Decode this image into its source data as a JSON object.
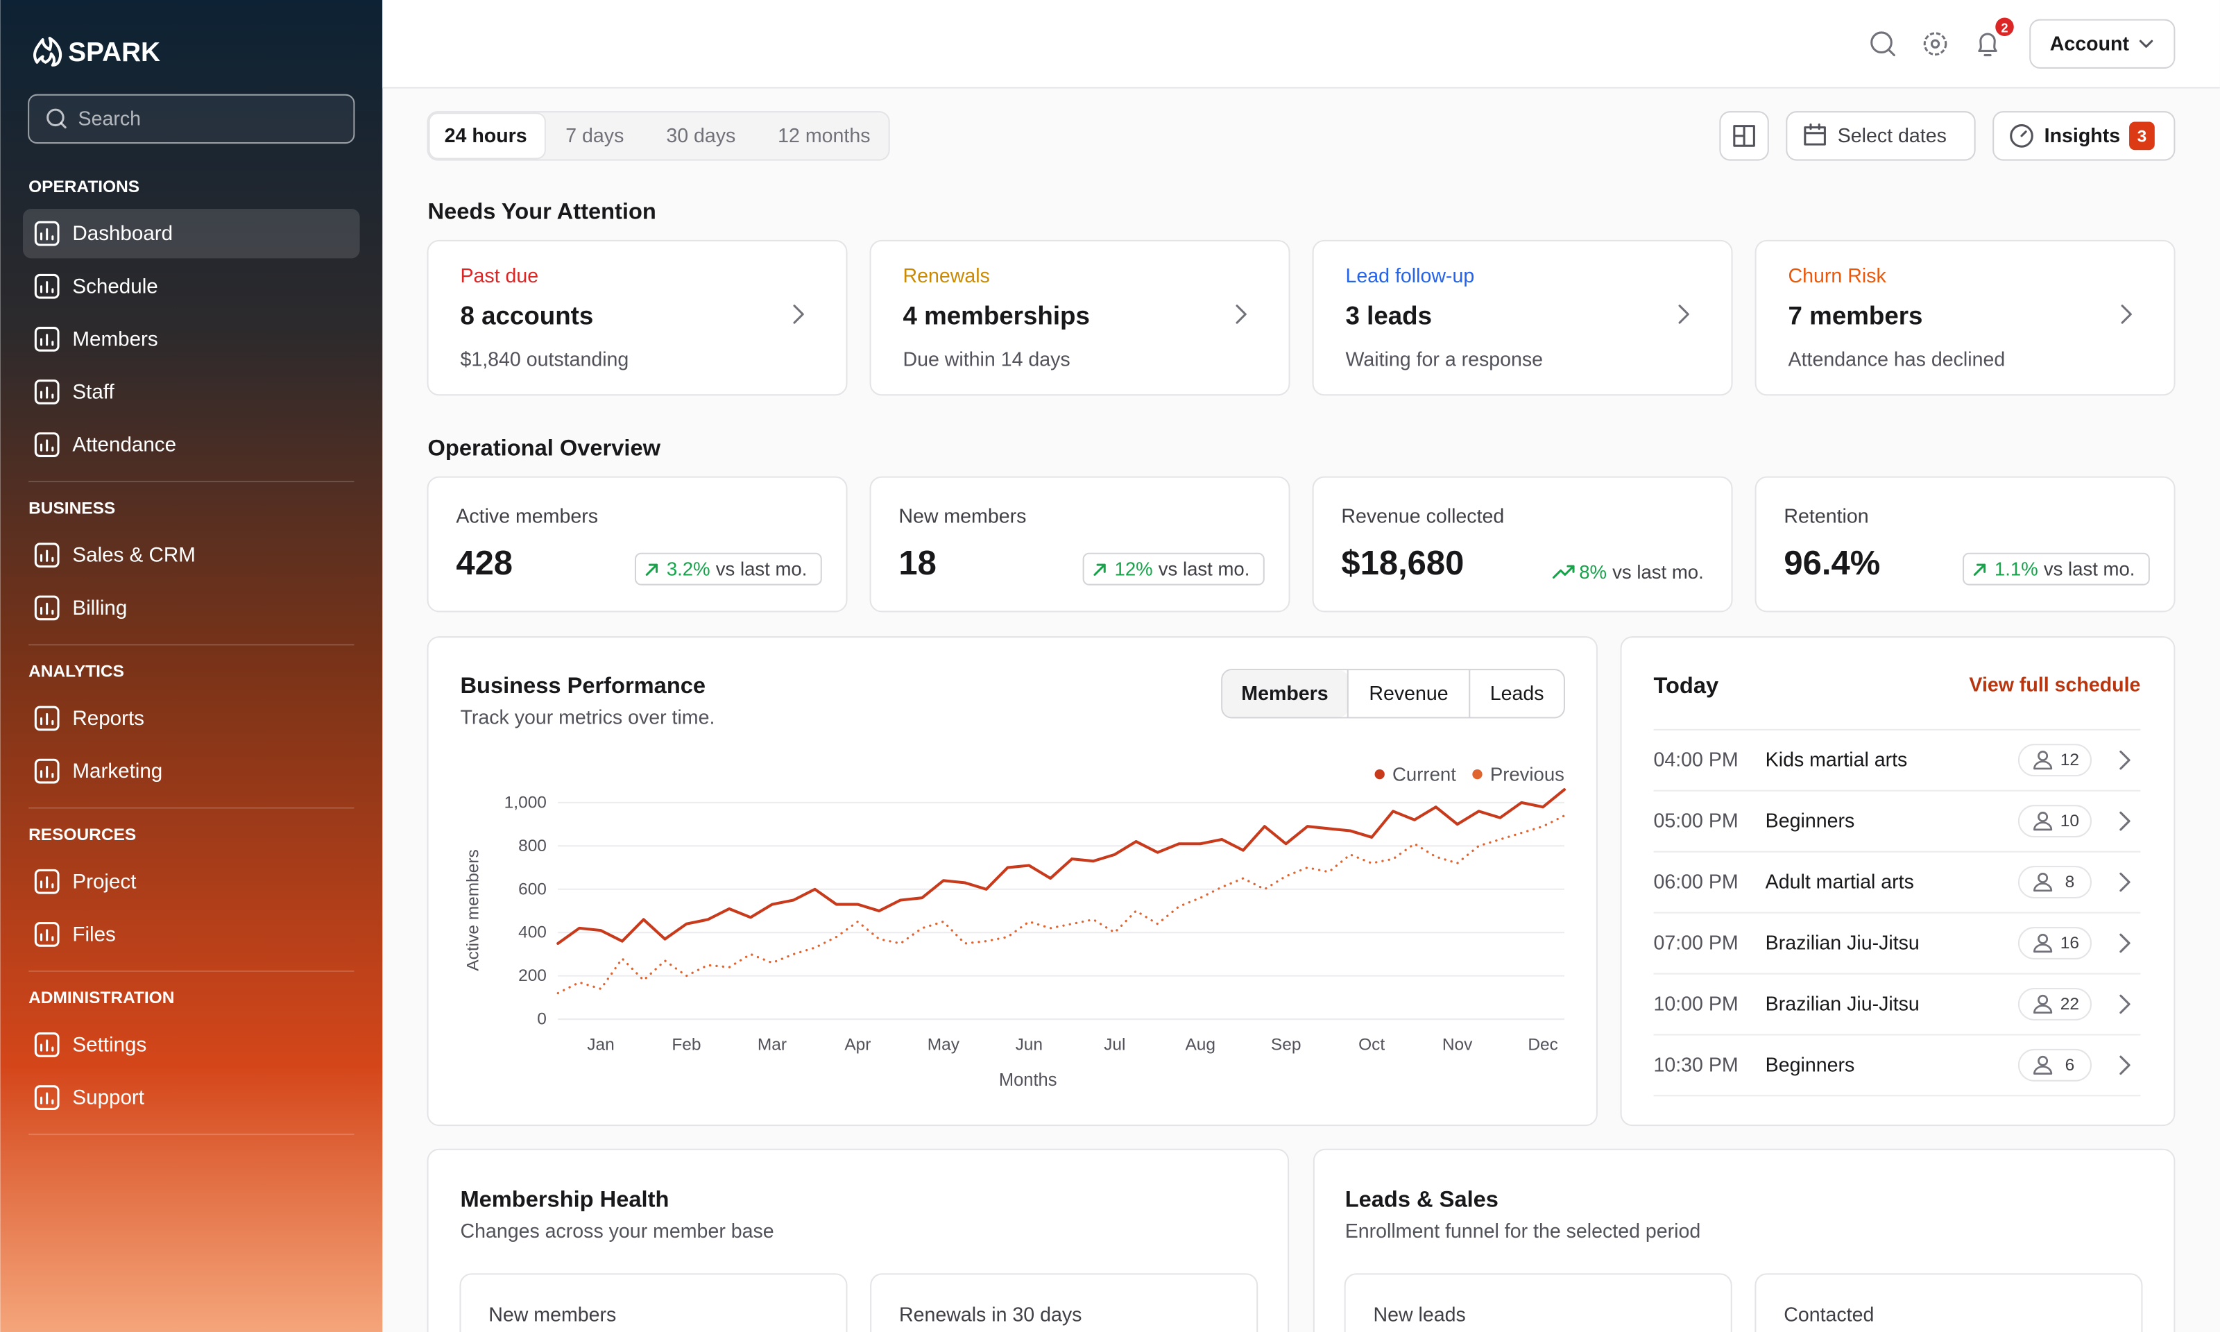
{
  "sidebar": {
    "brand": "SPARK",
    "search": "Search",
    "sections": [
      {
        "title": "OPERATIONS",
        "items": [
          "Dashboard",
          "Schedule",
          "Members",
          "Staff",
          "Attendance"
        ]
      },
      {
        "title": "BUSINESS",
        "items": [
          "Sales & CRM",
          "Billing"
        ]
      },
      {
        "title": "ANALYTICS",
        "items": [
          "Reports",
          "Marketing"
        ]
      },
      {
        "title": "RESOURCES",
        "items": [
          "Project",
          "Files"
        ]
      },
      {
        "title": "ADMINISTRATION",
        "items": [
          "Settings",
          "Support"
        ]
      }
    ]
  },
  "topbar": {
    "notifications": 2,
    "account": "Account"
  },
  "filters": {
    "ranges": [
      "24 hours",
      "7 days",
      "30 days",
      "12 months"
    ],
    "select_dates": "Select dates",
    "insights": "Insights",
    "insights_count": 3
  },
  "attention": {
    "title": "Needs Your Attention",
    "cards": [
      {
        "label": "Past due",
        "color": "#dc2626",
        "value": "8 accounts",
        "note": "$1,840 outstanding"
      },
      {
        "label": "Renewals",
        "color": "#ca8a04",
        "value": "4 memberships",
        "note": "Due within 14 days"
      },
      {
        "label": "Lead follow-up",
        "color": "#2563eb",
        "value": "3 leads",
        "note": "Waiting for a response"
      },
      {
        "label": "Churn Risk",
        "color": "#ea580c",
        "value": "7 members",
        "note": "Attendance has declined"
      }
    ]
  },
  "overview": {
    "title": "Operational Overview",
    "cards": [
      {
        "label": "Active members",
        "value": "428",
        "change": "3.2%",
        "comparison": "vs last mo.",
        "boxed": true
      },
      {
        "label": "New members",
        "value": "18",
        "change": "12%",
        "comparison": "vs last mo.",
        "boxed": true
      },
      {
        "label": "Revenue collected",
        "value": "$18,680",
        "change": "8%",
        "comparison": "vs last mo.",
        "boxed": false
      },
      {
        "label": "Retention",
        "value": "96.4%",
        "change": "1.1%",
        "comparison": "vs last mo.",
        "boxed": true
      }
    ]
  },
  "chart_data": {
    "type": "line",
    "title": "Business Performance",
    "subtitle": "Track your metrics over time.",
    "tabs": [
      "Members",
      "Revenue",
      "Leads"
    ],
    "y_label": "Active members",
    "x_label": "Months",
    "categories": [
      null,
      null,
      "Jan",
      null,
      null,
      null,
      "Feb",
      null,
      null,
      null,
      "Mar",
      null,
      null,
      null,
      "Apr",
      null,
      null,
      null,
      "May",
      null,
      null,
      null,
      "Jun",
      null,
      null,
      null,
      "Jul",
      null,
      null,
      null,
      "Aug",
      null,
      null,
      null,
      "Sep",
      null,
      null,
      null,
      "Oct",
      null,
      null,
      null,
      "Nov",
      null,
      null,
      null,
      "Dec",
      null
    ],
    "ylim": [
      0,
      1000
    ],
    "yticks": [
      0,
      200,
      400,
      600,
      800,
      {
        "value": 1000,
        "label": "1,000"
      }
    ],
    "grid": true,
    "legend": "top-right",
    "series": [
      {
        "name": "Current",
        "color": "#c73a1c",
        "style": "solid",
        "values": [
          350,
          420,
          410,
          360,
          460,
          370,
          440,
          460,
          510,
          470,
          530,
          550,
          600,
          530,
          530,
          500,
          550,
          560,
          640,
          630,
          600,
          700,
          710,
          650,
          740,
          730,
          760,
          820,
          770,
          810,
          810,
          830,
          780,
          890,
          810,
          890,
          880,
          870,
          840,
          960,
          920,
          980,
          900,
          960,
          930,
          1000,
          980,
          1060
        ]
      },
      {
        "name": "Previous",
        "color": "#e0642e",
        "style": "dotted",
        "values": [
          120,
          170,
          140,
          280,
          180,
          270,
          200,
          250,
          240,
          300,
          260,
          300,
          330,
          380,
          450,
          370,
          350,
          420,
          450,
          350,
          360,
          380,
          450,
          420,
          440,
          460,
          400,
          500,
          440,
          520,
          560,
          610,
          650,
          600,
          660,
          700,
          680,
          760,
          720,
          740,
          810,
          750,
          720,
          800,
          830,
          860,
          890,
          940
        ]
      }
    ]
  },
  "today": {
    "title": "Today",
    "link": "View full schedule",
    "rows": [
      {
        "time": "04:00 PM",
        "class": "Kids martial arts",
        "count": 12
      },
      {
        "time": "05:00 PM",
        "class": "Beginners",
        "count": 10
      },
      {
        "time": "06:00 PM",
        "class": "Adult martial arts",
        "count": 8
      },
      {
        "time": "07:00 PM",
        "class": "Brazilian Jiu-Jitsu",
        "count": 16
      },
      {
        "time": "10:00 PM",
        "class": "Brazilian Jiu-Jitsu",
        "count": 22
      },
      {
        "time": "10:30 PM",
        "class": "Beginners",
        "count": 6
      }
    ]
  },
  "membership_health": {
    "title": "Membership Health",
    "subtitle": "Changes across your member base",
    "cards": [
      "New members",
      "Renewals in 30 days"
    ]
  },
  "leads_sales": {
    "title": "Leads & Sales",
    "subtitle": "Enrollment funnel for the selected period",
    "cards": [
      "New leads",
      "Contacted"
    ]
  }
}
